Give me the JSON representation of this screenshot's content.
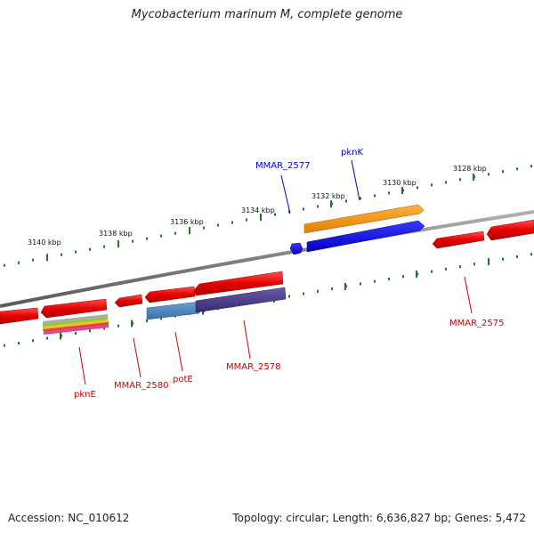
{
  "title": "Mycobacterium marinum M, complete genome",
  "accession": "Accession: NC_010612",
  "summary": "Topology: circular; Length: 6,636,827 bp; Genes: 5,472",
  "scale_labels": [
    "3128 kbp",
    "3130 kbp",
    "3132 kbp",
    "3134 kbp",
    "3136 kbp",
    "3138 kbp",
    "3140 kbp"
  ],
  "gene_labels": {
    "upper": [
      {
        "name": "MMAR_2577",
        "color": "#0000cc"
      },
      {
        "name": "pknK",
        "color": "#0000cc"
      }
    ],
    "lower": [
      {
        "name": "pknE",
        "color": "#cc0000"
      },
      {
        "name": "MMAR_2580",
        "color": "#cc0000"
      },
      {
        "name": "potE",
        "color": "#cc0000"
      },
      {
        "name": "MMAR_2578",
        "color": "#cc0000"
      },
      {
        "name": "MMAR_2575",
        "color": "#cc0000"
      }
    ]
  },
  "colors": {
    "backbone": "#808080",
    "tick": "#1a7a1a",
    "gene_red": "#e60000",
    "gene_blue": "#0000e6",
    "gene_orange": "#f0960a",
    "gene_steelblue": "#4a86bf",
    "gene_indigo": "#4b3c8a"
  }
}
